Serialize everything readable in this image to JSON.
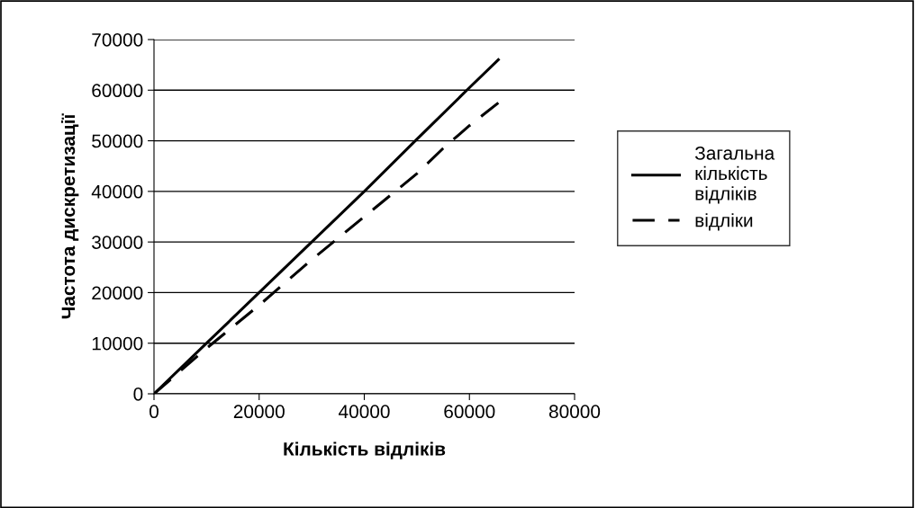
{
  "chart_data": {
    "type": "line",
    "xlabel": "Кількість відліків",
    "ylabel": "Частота дискретизації",
    "xlim": [
      0,
      80000
    ],
    "xticks": [
      0,
      20000,
      40000,
      60000,
      80000
    ],
    "ylim": [
      0,
      70000
    ],
    "yticks": [
      0,
      10000,
      20000,
      30000,
      40000,
      50000,
      60000,
      70000
    ],
    "grid": "y",
    "legend": "right",
    "marker": "none",
    "series": [
      {
        "name": "Загальна\nкількість\nвідліків",
        "color": "#000000",
        "line_style": "solid",
        "x": [
          0,
          10000,
          20000,
          30000,
          40000,
          50000,
          60000,
          65500
        ],
        "values": [
          0,
          10000,
          20000,
          30000,
          40000,
          50300,
          60500,
          66000
        ]
      },
      {
        "name": "відліки",
        "color": "#000000",
        "line_style": "dashed",
        "x": [
          0,
          10000,
          20000,
          30000,
          40000,
          50000,
          55000,
          60000,
          65500
        ],
        "values": [
          0,
          9000,
          17500,
          26500,
          35000,
          43500,
          48500,
          53000,
          57500
        ]
      }
    ]
  }
}
